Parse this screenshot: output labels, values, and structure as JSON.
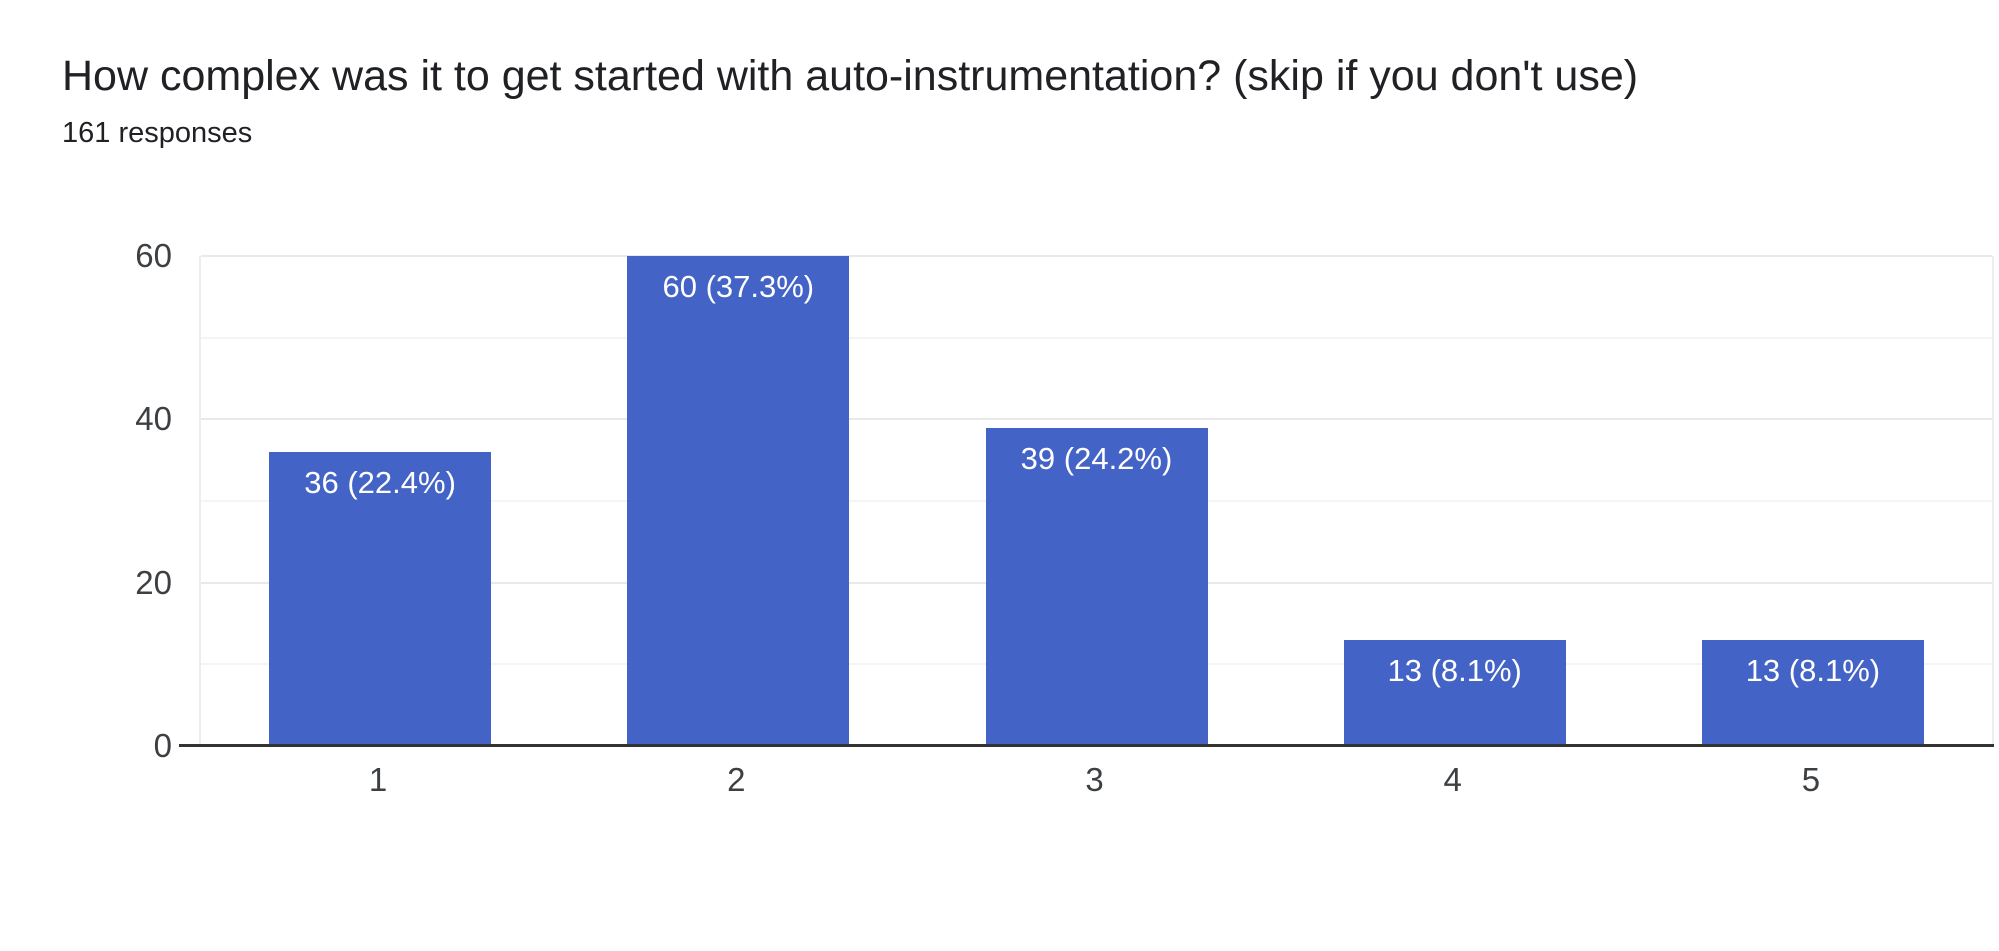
{
  "header": {
    "title": "How complex was it to get started with auto-instrumentation? (skip if you don't use)",
    "subtitle": "161 responses"
  },
  "chart_data": {
    "type": "bar",
    "title": "How complex was it to get started with auto-instrumentation? (skip if you don't use)",
    "subtitle": "161 responses",
    "categories": [
      "1",
      "2",
      "3",
      "4",
      "5"
    ],
    "values": [
      36,
      60,
      39,
      13,
      13
    ],
    "percentages": [
      22.4,
      37.3,
      24.2,
      8.1,
      8.1
    ],
    "bar_labels": [
      "36 (22.4%)",
      "60 (37.3%)",
      "39 (24.2%)",
      "13 (8.1%)",
      "13 (8.1%)"
    ],
    "xlabel": "",
    "ylabel": "",
    "ylim": [
      0,
      60
    ],
    "yticks_major": [
      0,
      20,
      40,
      60
    ],
    "yticks_minor": [
      10,
      30,
      50
    ],
    "grid": true,
    "legend": "none",
    "colors": {
      "bar": "#4363c6",
      "bar_label": "#ffffff",
      "axis_line": "#333333",
      "grid_major": "#e9e9e9",
      "grid_minor": "#f4f4f4",
      "tick_text": "#3c4043",
      "title_text": "#202124"
    }
  }
}
